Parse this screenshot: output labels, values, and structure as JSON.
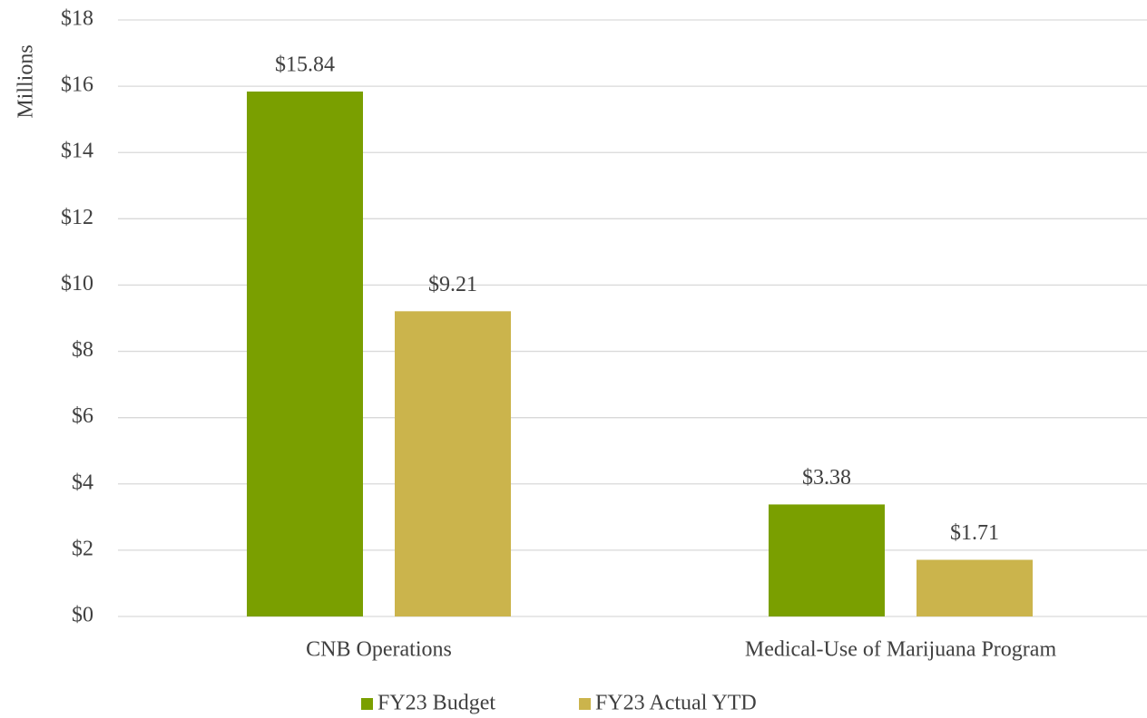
{
  "chart_data": {
    "type": "bar",
    "y_label": "Millions",
    "categories": [
      "CNB Operations",
      "Medical-Use of Marijuana Program"
    ],
    "series": [
      {
        "name": "FY23 Budget",
        "color": "#7a9f00",
        "values": [
          15.84,
          3.38
        ],
        "value_labels": [
          "$15.84",
          "$3.38"
        ]
      },
      {
        "name": "FY23 Actual YTD",
        "color": "#cbb44c",
        "values": [
          9.21,
          1.71
        ],
        "value_labels": [
          "$9.21",
          "$1.71"
        ]
      }
    ],
    "ylim": [
      0,
      18
    ],
    "yticks": [
      {
        "value": 0,
        "label": "$0"
      },
      {
        "value": 2,
        "label": "$2"
      },
      {
        "value": 4,
        "label": "$4"
      },
      {
        "value": 6,
        "label": "$6"
      },
      {
        "value": 8,
        "label": "$8"
      },
      {
        "value": 10,
        "label": "$10"
      },
      {
        "value": 12,
        "label": "$12"
      },
      {
        "value": 14,
        "label": "$14"
      },
      {
        "value": 16,
        "label": "$16"
      },
      {
        "value": 18,
        "label": "$18"
      }
    ],
    "grid": true,
    "legend": "bottom"
  }
}
